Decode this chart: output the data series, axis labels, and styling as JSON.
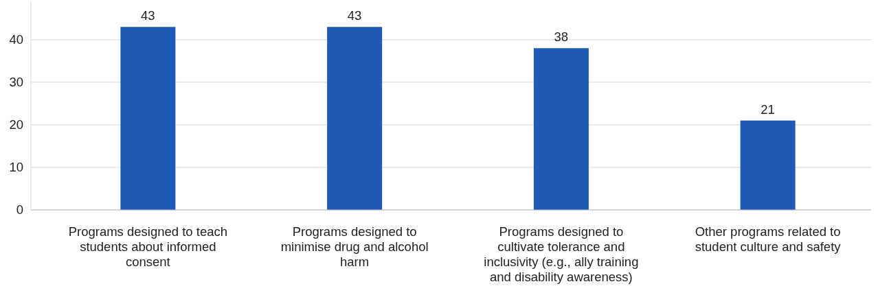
{
  "chart_data": {
    "type": "bar",
    "categories": [
      "Programs designed to teach students about informed consent",
      "Programs designed to minimise drug and alcohol harm",
      "Programs designed to cultivate tolerance and inclusivity (e.g., ally training and disability awareness)",
      "Other programs related to student culture and safety"
    ],
    "values": [
      43,
      43,
      38,
      21
    ],
    "color": "#1f5bb6",
    "ylim": [
      0,
      49
    ],
    "yticks": [
      0,
      10,
      20,
      30,
      40
    ],
    "grid": "y",
    "data_labels": true
  }
}
